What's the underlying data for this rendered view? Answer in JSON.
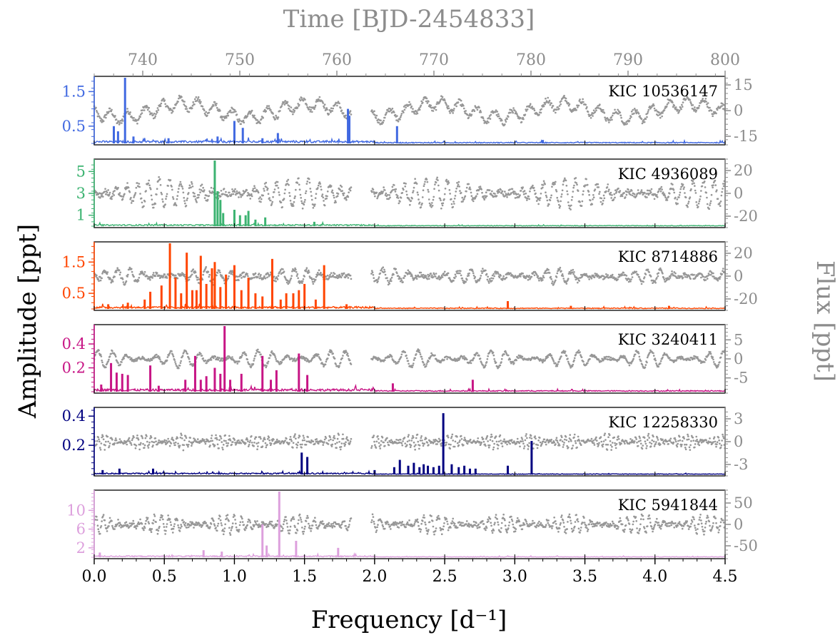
{
  "chart_data": {
    "type": "line",
    "xlabel": "Frequency [d⁻¹]",
    "ylabel": "Amplitude [ppt]",
    "y2label": "Flux [ppt]",
    "x2label": "Time [BJD-2454833]",
    "xlim": [
      0.0,
      4.5
    ],
    "xticks": [
      "0.0",
      "0.5",
      "1.0",
      "1.5",
      "2.0",
      "2.5",
      "3.0",
      "3.5",
      "4.0",
      "4.5"
    ],
    "x2lim": [
      735.0,
      800.0
    ],
    "x2ticks": [
      "740",
      "750",
      "760",
      "770",
      "780",
      "790",
      "800"
    ],
    "lightcurve_color": "#8c8c8c",
    "gap": [
      761.5,
      763.5
    ],
    "panels": [
      {
        "name": "KIC 10536147",
        "color": "#4169e1",
        "ylim": [
          0.0,
          1.9
        ],
        "yticks": [
          0.5,
          1.5
        ],
        "flux_lim": [
          -20,
          20
        ],
        "flux_ticks": [
          15,
          0,
          -15
        ],
        "peaks": [
          [
            0.14,
            0.5
          ],
          [
            0.17,
            0.35
          ],
          [
            0.22,
            1.9
          ],
          [
            0.28,
            0.2
          ],
          [
            0.53,
            0.15
          ],
          [
            0.88,
            0.2
          ],
          [
            1.0,
            0.65
          ],
          [
            1.06,
            0.45
          ],
          [
            1.2,
            0.15
          ],
          [
            1.31,
            0.3
          ],
          [
            1.81,
            1.0
          ],
          [
            1.82,
            0.8
          ],
          [
            2.16,
            0.5
          ],
          [
            3.2,
            0.1
          ]
        ],
        "noise": 0.06,
        "lc": {
          "amp": 3.5,
          "period": 1.8,
          "jitter": 1.5,
          "trend": 4
        }
      },
      {
        "name": "KIC 4936089",
        "color": "#3cb371",
        "ylim": [
          0.0,
          6.0
        ],
        "yticks": [
          1,
          3,
          5
        ],
        "flux_lim": [
          -30,
          30
        ],
        "flux_ticks": [
          20,
          0,
          -20
        ],
        "peaks": [
          [
            0.86,
            6.0
          ],
          [
            0.88,
            3.2
          ],
          [
            0.9,
            2.4
          ],
          [
            0.92,
            1.2
          ],
          [
            1.0,
            1.5
          ],
          [
            1.04,
            1.0
          ],
          [
            1.08,
            1.0
          ],
          [
            1.1,
            1.4
          ],
          [
            1.15,
            0.6
          ],
          [
            1.22,
            0.8
          ],
          [
            1.57,
            0.4
          ],
          [
            2.1,
            0.1
          ]
        ],
        "noise": 0.12,
        "lc": {
          "amp": 12,
          "period": 1.1,
          "jitter": 0.8,
          "beat": 14
        }
      },
      {
        "name": "KIC 8714886",
        "color": "#ff4500",
        "ylim": [
          0.0,
          2.1
        ],
        "yticks": [
          0.5,
          1.5
        ],
        "flux_lim": [
          -30,
          30
        ],
        "flux_ticks": [
          20,
          0,
          -20
        ],
        "peaks": [
          [
            0.1,
            0.15
          ],
          [
            0.24,
            0.2
          ],
          [
            0.36,
            0.3
          ],
          [
            0.4,
            0.55
          ],
          [
            0.48,
            0.75
          ],
          [
            0.54,
            2.1
          ],
          [
            0.58,
            1.0
          ],
          [
            0.62,
            0.5
          ],
          [
            0.66,
            1.8
          ],
          [
            0.7,
            0.6
          ],
          [
            0.73,
            0.6
          ],
          [
            0.76,
            1.7
          ],
          [
            0.8,
            0.8
          ],
          [
            0.84,
            1.3
          ],
          [
            0.86,
            1.5
          ],
          [
            0.9,
            0.7
          ],
          [
            0.94,
            1.1
          ],
          [
            1.0,
            1.4
          ],
          [
            1.05,
            0.6
          ],
          [
            1.1,
            1.0
          ],
          [
            1.15,
            0.5
          ],
          [
            1.2,
            0.4
          ],
          [
            1.27,
            1.6
          ],
          [
            1.33,
            0.3
          ],
          [
            1.37,
            0.5
          ],
          [
            1.42,
            0.5
          ],
          [
            1.46,
            0.6
          ],
          [
            1.5,
            0.8
          ],
          [
            1.58,
            0.3
          ],
          [
            1.64,
            1.4
          ],
          [
            1.8,
            0.15
          ],
          [
            2.95,
            0.25
          ],
          [
            3.4,
            0.1
          ],
          [
            4.1,
            0.1
          ]
        ],
        "noise": 0.06,
        "lc": {
          "amp": 6,
          "period": 1.3,
          "jitter": 1.2,
          "beat": 9
        }
      },
      {
        "name": "KIC 3240411",
        "color": "#c71585",
        "ylim": [
          0.0,
          0.55
        ],
        "yticks": [
          0.2,
          0.4
        ],
        "flux_lim": [
          -9,
          9
        ],
        "flux_ticks": [
          5,
          0,
          -5
        ],
        "peaks": [
          [
            0.05,
            0.06
          ],
          [
            0.12,
            0.24
          ],
          [
            0.16,
            0.16
          ],
          [
            0.2,
            0.15
          ],
          [
            0.24,
            0.14
          ],
          [
            0.4,
            0.22
          ],
          [
            0.46,
            0.05
          ],
          [
            0.65,
            0.1
          ],
          [
            0.72,
            0.3
          ],
          [
            0.76,
            0.1
          ],
          [
            0.8,
            0.13
          ],
          [
            0.86,
            0.2
          ],
          [
            0.9,
            0.15
          ],
          [
            0.93,
            0.55
          ],
          [
            0.97,
            0.1
          ],
          [
            1.05,
            0.15
          ],
          [
            1.2,
            0.3
          ],
          [
            1.26,
            0.1
          ],
          [
            1.3,
            0.18
          ],
          [
            1.46,
            0.32
          ],
          [
            1.52,
            0.14
          ],
          [
            2.13,
            0.07
          ],
          [
            2.7,
            0.1
          ]
        ],
        "noise": 0.018,
        "lc": {
          "amp": 2.2,
          "period": 1.5,
          "jitter": 0.6,
          "beat": 8
        }
      },
      {
        "name": "KIC 12258330",
        "color": "#000080",
        "ylim": [
          0.0,
          0.45
        ],
        "yticks": [
          0.2,
          0.4
        ],
        "flux_lim": [
          -4.5,
          4.5
        ],
        "flux_ticks": [
          3,
          0,
          -3
        ],
        "peaks": [
          [
            0.06,
            0.03
          ],
          [
            0.18,
            0.04
          ],
          [
            0.42,
            0.04
          ],
          [
            1.48,
            0.15
          ],
          [
            1.52,
            0.12
          ],
          [
            2.0,
            0.03
          ],
          [
            2.14,
            0.05
          ],
          [
            2.18,
            0.1
          ],
          [
            2.24,
            0.06
          ],
          [
            2.28,
            0.08
          ],
          [
            2.32,
            0.05
          ],
          [
            2.35,
            0.07
          ],
          [
            2.38,
            0.06
          ],
          [
            2.42,
            0.05
          ],
          [
            2.46,
            0.06
          ],
          [
            2.49,
            0.42
          ],
          [
            2.55,
            0.07
          ],
          [
            2.6,
            0.05
          ],
          [
            2.64,
            0.06
          ],
          [
            2.68,
            0.04
          ],
          [
            2.72,
            0.04
          ],
          [
            2.95,
            0.06
          ],
          [
            3.12,
            0.23
          ]
        ],
        "noise": 0.008,
        "lc": {
          "amp": 0.9,
          "period": 0.45,
          "jitter": 1.0,
          "beat": 4
        }
      },
      {
        "name": "KIC 5941844",
        "color": "#dda0dd",
        "ylim": [
          0.0,
          14.0
        ],
        "yticks": [
          2,
          6,
          10
        ],
        "flux_lim": [
          -80,
          80
        ],
        "flux_ticks": [
          50,
          0,
          -50
        ],
        "peaks": [
          [
            0.04,
            1.0
          ],
          [
            0.78,
            1.5
          ],
          [
            0.91,
            1.2
          ],
          [
            1.2,
            7.0
          ],
          [
            1.23,
            2.5
          ],
          [
            1.32,
            14.0
          ],
          [
            1.44,
            3.5
          ],
          [
            1.74,
            2.0
          ],
          [
            2.0,
            0.2
          ],
          [
            3.9,
            0.1
          ]
        ],
        "noise": 0.25,
        "lc": {
          "amp": 20,
          "period": 0.75,
          "jitter": 1.0,
          "beat": 7
        }
      }
    ]
  }
}
